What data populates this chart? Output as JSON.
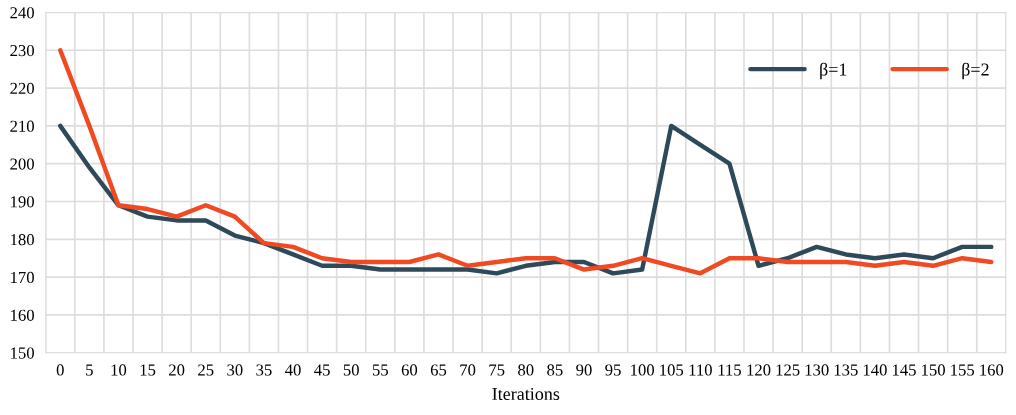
{
  "chart_data": {
    "type": "line",
    "xlabel": "Iterations",
    "categories": [
      "0",
      "5",
      "10",
      "15",
      "20",
      "25",
      "30",
      "35",
      "40",
      "45",
      "50",
      "55",
      "60",
      "65",
      "70",
      "75",
      "80",
      "85",
      "90",
      "95",
      "100",
      "105",
      "110",
      "115",
      "120",
      "125",
      "130",
      "135",
      "140",
      "145",
      "150",
      "155",
      "160"
    ],
    "series": [
      {
        "name": "β=1",
        "color": "#2e4a5a",
        "values": [
          210,
          199,
          189,
          186,
          185,
          185,
          181,
          179,
          176,
          173,
          173,
          172,
          172,
          172,
          172,
          171,
          173,
          174,
          174,
          171,
          172,
          210,
          205,
          200,
          173,
          175,
          178,
          176,
          175,
          176,
          175,
          178,
          178
        ]
      },
      {
        "name": "β=2",
        "color": "#f04a23",
        "values": [
          230,
          210,
          189,
          188,
          186,
          189,
          186,
          179,
          178,
          175,
          174,
          174,
          174,
          176,
          173,
          174,
          175,
          175,
          172,
          173,
          175,
          173,
          171,
          175,
          175,
          174,
          174,
          174,
          173,
          174,
          173,
          175,
          174
        ]
      }
    ],
    "ylim": [
      150,
      240
    ],
    "yticks": [
      150,
      160,
      170,
      180,
      190,
      200,
      210,
      220,
      230,
      240
    ],
    "grid": true,
    "legend": "top right",
    "marker": "none",
    "line_style": "solid"
  }
}
